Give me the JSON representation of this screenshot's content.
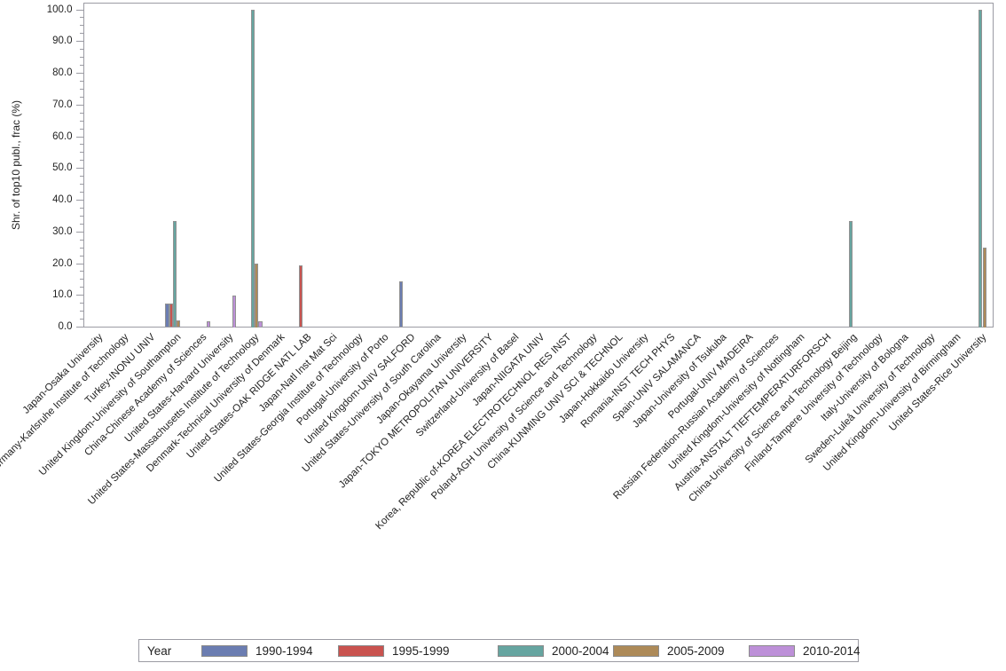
{
  "chart": {
    "ylabel": "Shr. of top10 publ., frac (%)",
    "legend_title": "Year"
  },
  "chart_data": {
    "type": "bar",
    "title": "",
    "ylabel": "Shr. of top10 publ., frac (%)",
    "xlabel": "",
    "ylim": [
      0,
      100
    ],
    "ytick_step": 10,
    "yminor_step": 2.5,
    "ytick_format_decimals": 1,
    "grid": false,
    "legend_position": "bottom",
    "legend_title": "Year",
    "bar_colors": {
      "1990-1994": "#6b7db1",
      "1995-1999": "#c9534f",
      "2000-2004": "#66a5a0",
      "2005-2009": "#ad8a58",
      "2010-2014": "#bd90d8"
    },
    "categories": [
      "Japan-Osaka University",
      "Germany-Karlsruhe Institute of Technology",
      "Turkey-INONU UNIV",
      "United Kingdom-University of Southampton",
      "China-Chinese Academy of Sciences",
      "United States-Harvard University",
      "United States-Massachusetts Institute of Technology",
      "Denmark-Technical University of Denmark",
      "United States-OAK RIDGE NATL LAB",
      "Japan-Natl Inst Mat Sci",
      "United States-Georgia Institute of Technology",
      "Portugal-University of Porto",
      "United Kingdom-UNIV SALFORD",
      "United States-University of South Carolina",
      "Japan-Okayama University",
      "Japan-TOKYO METROPOLITAN UNIVERSITY",
      "Switzerland-University of Basel",
      "Japan-NIIGATA UNIV",
      "Korea, Republic of-KOREA ELECTROTECHNOL RES INST",
      "Poland-AGH University of Science and Technology",
      "China-KUNMING UNIV SCI & TECHNOL",
      "Japan-Hokkaido University",
      "Romania-INST TECH PHYS",
      "Spain-UNIV SALAMANCA",
      "Japan-University of Tsukuba",
      "Portugal-UNIV MADEIRA",
      "Russian Federation-Russian Academy of Sciences",
      "United Kingdom-University of Nottingham",
      "Austria-ANSTALT TIEFTEMPERATURFORSCH",
      "China-University of Science and Technology Beijing",
      "Finland-Tampere University of Technology",
      "Italy-University of Bologna",
      "Sweden-Luleå University of Technology",
      "United Kingdom-University of Birmingham",
      "United States-Rice University"
    ],
    "series": [
      {
        "name": "1990-1994",
        "color": "#6b7db1",
        "values": [
          0,
          0,
          0,
          7.3,
          0,
          0,
          0,
          0,
          0,
          0,
          0,
          0,
          14.3,
          0,
          0,
          0,
          0,
          0,
          0,
          0,
          0,
          0,
          0,
          0,
          0,
          0,
          0,
          0,
          0,
          0,
          0,
          0,
          0,
          0,
          0
        ]
      },
      {
        "name": "1995-1999",
        "color": "#c9534f",
        "values": [
          0,
          0,
          0,
          7.3,
          0,
          0,
          0,
          0,
          19.5,
          0,
          0,
          0,
          0,
          0,
          0,
          0,
          0,
          0,
          0,
          0,
          0,
          0,
          0,
          0,
          0,
          0,
          0,
          0,
          0,
          0,
          0,
          0,
          0,
          0,
          0
        ]
      },
      {
        "name": "2000-2004",
        "color": "#66a5a0",
        "values": [
          0,
          0,
          0,
          33.3,
          0,
          0,
          100,
          0,
          0,
          0,
          0,
          0,
          0,
          0,
          0,
          0,
          0,
          0,
          0,
          0,
          0,
          0,
          0,
          0,
          0,
          0,
          0,
          0,
          0,
          33.3,
          0,
          0,
          0,
          0,
          100
        ]
      },
      {
        "name": "2005-2009",
        "color": "#ad8a58",
        "values": [
          0,
          0,
          0,
          2.1,
          0,
          0,
          20,
          0,
          0,
          0,
          0,
          0,
          0,
          0,
          0,
          0,
          0,
          0,
          0,
          0,
          0,
          0,
          0,
          0,
          0,
          0,
          0,
          0,
          0,
          0,
          0,
          0,
          0,
          0,
          25
        ]
      },
      {
        "name": "2010-2014",
        "color": "#bd90d8",
        "values": [
          0,
          0,
          0,
          0,
          1.8,
          10,
          1.8,
          0,
          0,
          0,
          0,
          0,
          0,
          0,
          0,
          0,
          0,
          0,
          0,
          0,
          0,
          0,
          0,
          0,
          0,
          0,
          0,
          0,
          0,
          0,
          0,
          0,
          0,
          0,
          0
        ]
      }
    ]
  }
}
